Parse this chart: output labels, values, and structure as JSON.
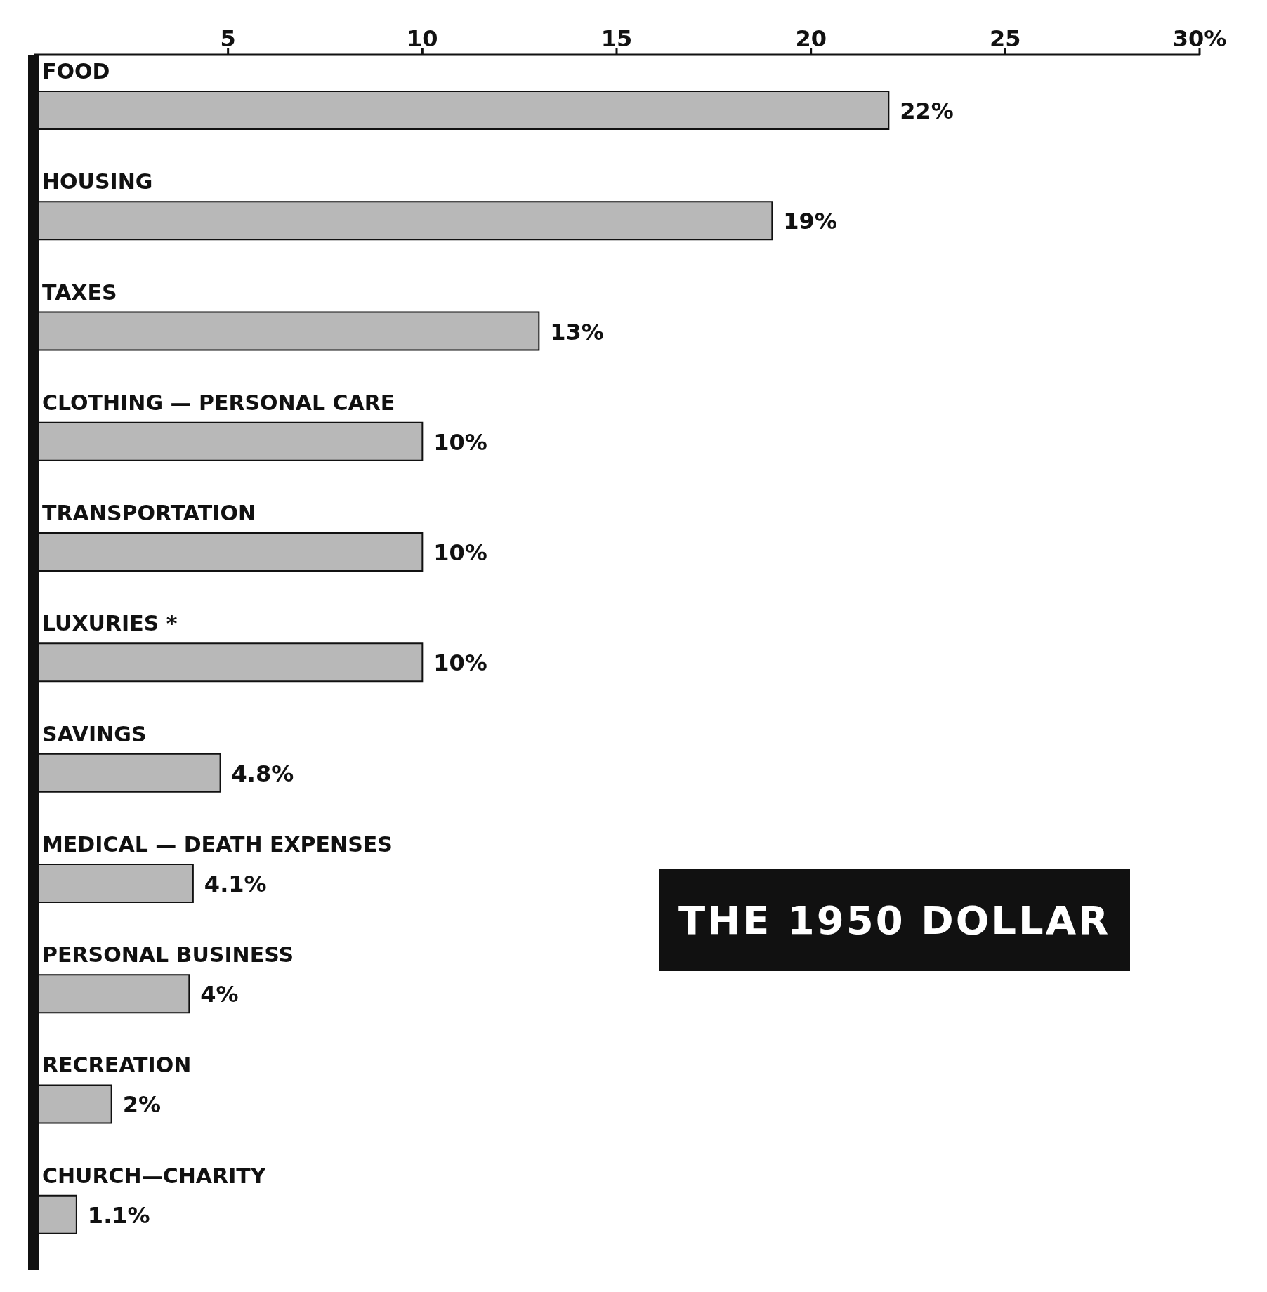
{
  "chart_data": {
    "type": "bar",
    "orientation": "horizontal",
    "title": "THE 1950 DOLLAR",
    "categories": [
      "FOOD",
      "HOUSING",
      "TAXES",
      "CLOTHING — PERSONAL CARE",
      "TRANSPORTATION",
      "LUXURIES *",
      "SAVINGS",
      "MEDICAL — DEATH EXPENSES",
      "PERSONAL BUSINESS",
      "RECREATION",
      "CHURCH—CHARITY"
    ],
    "values": [
      22,
      19,
      13,
      10,
      10,
      10,
      4.8,
      4.1,
      4,
      2,
      1.1
    ],
    "value_labels": [
      "22%",
      "19%",
      "13%",
      "10%",
      "10%",
      "10%",
      "4.8%",
      "4.1%",
      "4%",
      "2%",
      "1.1%"
    ],
    "color": "#b8b8b8",
    "xlim": [
      0,
      30
    ],
    "xticks": [
      5,
      10,
      15,
      20,
      25,
      {
        "value": 30,
        "label": "30%"
      }
    ]
  }
}
